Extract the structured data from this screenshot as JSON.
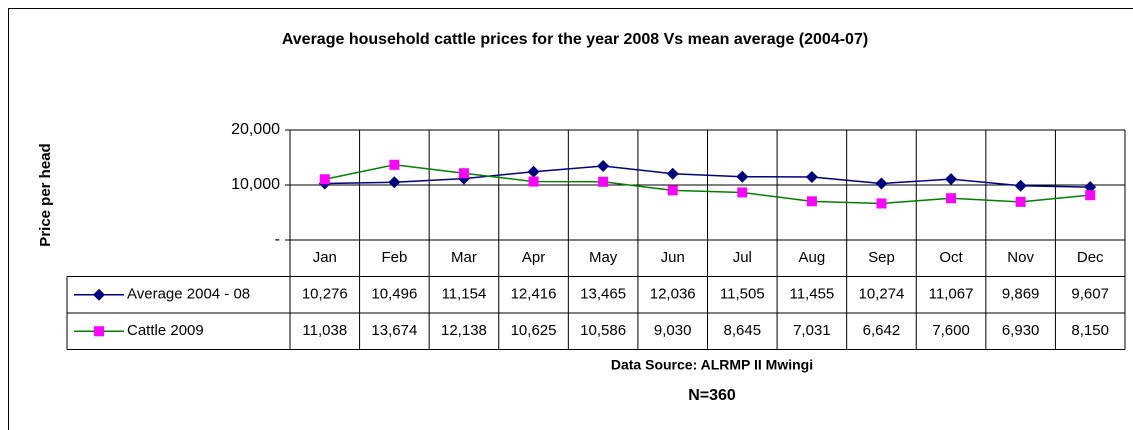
{
  "chart_data": {
    "type": "line",
    "title": "Average household cattle prices for the year 2008 Vs mean average (2004-07)",
    "ylabel": "Price per head",
    "categories": [
      "Jan",
      "Feb",
      "Mar",
      "Apr",
      "May",
      "Jun",
      "Jul",
      "Aug",
      "Sep",
      "Oct",
      "Nov",
      "Dec"
    ],
    "series": [
      {
        "name": "Average 2004 - 08",
        "color": "#000080",
        "marker_color": "#000080",
        "marker": "diamond",
        "values": [
          10276,
          10496,
          11154,
          12416,
          13465,
          12036,
          11505,
          11455,
          10274,
          11067,
          9869,
          9607
        ],
        "value_labels": [
          "10,276",
          "10,496",
          "11,154",
          "12,416",
          "13,465",
          "12,036",
          "11,505",
          "11,455",
          "10,274",
          "11,067",
          "9,869",
          "9,607"
        ]
      },
      {
        "name": "Cattle 2009",
        "color": "#008000",
        "marker_color": "#ff00ff",
        "marker": "square",
        "values": [
          11038,
          13674,
          12138,
          10625,
          10586,
          9030,
          8645,
          7031,
          6642,
          7600,
          6930,
          8150
        ],
        "value_labels": [
          "11,038",
          "13,674",
          "12,138",
          "10,625",
          "10,586",
          "9,030",
          "8,645",
          "7,031",
          "6,642",
          "7,600",
          "6,930",
          "8,150"
        ]
      }
    ],
    "ylim": [
      0,
      20000
    ],
    "yticks": [
      {
        "value": 0,
        "label": "-"
      },
      {
        "value": 10000,
        "label": "10,000"
      },
      {
        "value": 20000,
        "label": "20,000"
      }
    ],
    "grid": true,
    "source": "Data Source: ALRMP II Mwingi",
    "note": "N=360"
  }
}
